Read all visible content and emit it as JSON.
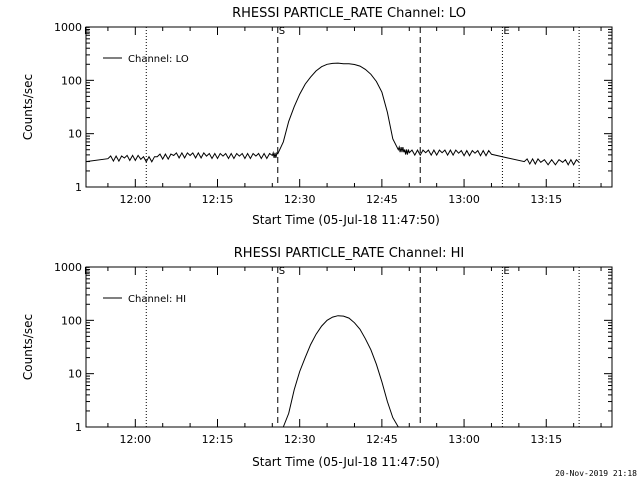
{
  "footer_timestamp": "20-Nov-2019 21:18",
  "chart_data": [
    {
      "type": "line",
      "title": "RHESSI PARTICLE_RATE Channel: LO",
      "xlabel": "Start Time (05-Jul-18 11:47:50)",
      "ylabel": "Counts/sec",
      "yscale": "log",
      "ylim": [
        1,
        1000
      ],
      "xlim": [
        "11:51",
        "13:27"
      ],
      "xticks": [
        "12:00",
        "12:15",
        "12:30",
        "12:45",
        "13:00",
        "13:15"
      ],
      "yticks": [
        "1",
        "10",
        "100",
        "1000"
      ],
      "legend": {
        "placement": "top-left",
        "label": "Channel: LO"
      },
      "markers": {
        "dashed": [
          "12:26",
          "12:52"
        ],
        "dotted": [
          "12:02",
          "13:07",
          "13:21",
          "13:27"
        ],
        "labels": [
          {
            "text": "S",
            "time": "12:26"
          },
          {
            "text": "E",
            "time": "13:07"
          }
        ]
      },
      "series": [
        {
          "name": "Channel: LO",
          "x": [
            "11:51",
            "11:55",
            "11:58",
            "12:01",
            "12:04",
            "12:07",
            "12:10",
            "12:13",
            "12:16",
            "12:19",
            "12:22",
            "12:25",
            "12:26",
            "12:27",
            "12:28",
            "12:29",
            "12:30",
            "12:31",
            "12:32",
            "12:33",
            "12:34",
            "12:35",
            "12:36",
            "12:37",
            "12:38",
            "12:39",
            "12:40",
            "12:41",
            "12:42",
            "12:43",
            "12:44",
            "12:45",
            "12:46",
            "12:47",
            "12:48",
            "12:49",
            "12:50",
            "12:53",
            "12:56",
            "12:59",
            "13:02",
            "13:05",
            "13:08",
            "13:11",
            "13:14",
            "13:18",
            "13:21"
          ],
          "y": [
            3.0,
            3.4,
            3.5,
            3.3,
            3.7,
            3.9,
            3.9,
            3.8,
            3.8,
            3.8,
            3.8,
            3.9,
            4.2,
            7,
            17,
            32,
            55,
            85,
            115,
            150,
            180,
            200,
            208,
            210,
            205,
            205,
            198,
            185,
            160,
            130,
            95,
            60,
            25,
            8,
            5,
            4.5,
            4.4,
            4.4,
            4.4,
            4.3,
            4.3,
            4.1,
            3.5,
            3.0,
            2.9,
            2.9,
            2.9
          ]
        }
      ]
    },
    {
      "type": "line",
      "title": "RHESSI PARTICLE_RATE Channel: HI",
      "xlabel": "Start Time (05-Jul-18 11:47:50)",
      "ylabel": "Counts/sec",
      "yscale": "log",
      "ylim": [
        1,
        1000
      ],
      "xlim": [
        "11:51",
        "13:27"
      ],
      "xticks": [
        "12:00",
        "12:15",
        "12:30",
        "12:45",
        "13:00",
        "13:15"
      ],
      "yticks": [
        "1",
        "10",
        "100",
        "1000"
      ],
      "legend": {
        "placement": "top-left",
        "label": "Channel: HI"
      },
      "markers": {
        "dashed": [
          "12:26",
          "12:52"
        ],
        "dotted": [
          "12:02",
          "13:07",
          "13:21",
          "13:27"
        ],
        "labels": [
          {
            "text": "S",
            "time": "12:26"
          },
          {
            "text": "E",
            "time": "13:07"
          }
        ]
      },
      "series": [
        {
          "name": "Channel: HI",
          "x": [
            "12:27",
            "12:28",
            "12:29",
            "12:30",
            "12:31",
            "12:32",
            "12:33",
            "12:34",
            "12:35",
            "12:36",
            "12:37",
            "12:38",
            "12:39",
            "12:40",
            "12:41",
            "12:42",
            "12:43",
            "12:44",
            "12:45",
            "12:46",
            "12:47",
            "12:48"
          ],
          "y": [
            1.0,
            1.8,
            5,
            11,
            20,
            35,
            55,
            78,
            100,
            115,
            122,
            120,
            110,
            90,
            68,
            45,
            28,
            15,
            7,
            3,
            1.5,
            1.0
          ]
        }
      ]
    }
  ]
}
